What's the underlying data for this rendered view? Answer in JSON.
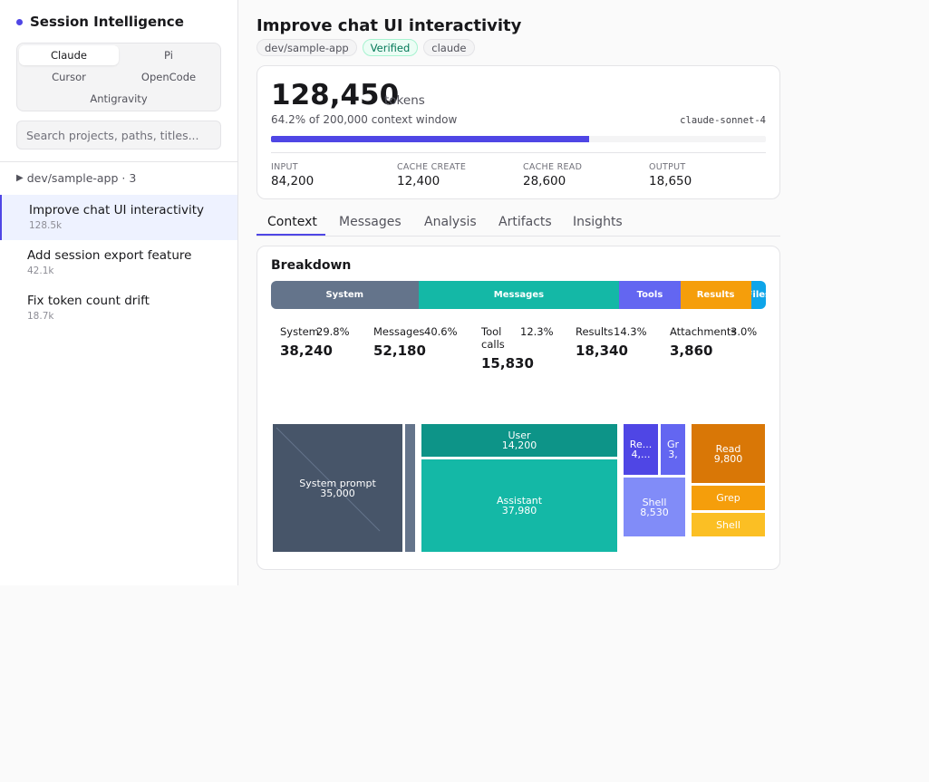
{
  "app": {
    "title": "Session Intelligence"
  },
  "agents": [
    "Claude",
    "Pi",
    "Cursor",
    "OpenCode",
    "Antigravity"
  ],
  "search": {
    "placeholder": "Search projects, paths, titles..."
  },
  "project_group": {
    "label": "dev/sample-app · 3"
  },
  "sessions": [
    {
      "title": "Improve chat UI interactivity",
      "tokens": "128.5k"
    },
    {
      "title": "Add session export feature",
      "tokens": "42.1k"
    },
    {
      "title": "Fix token count drift",
      "tokens": "18.7k"
    }
  ],
  "session": {
    "title": "Improve chat UI interactivity",
    "pills": [
      "dev/sample-app",
      "Verified",
      "claude"
    ]
  },
  "tokens": {
    "total": "128,450",
    "unit": "tokens",
    "context_text": "64.2% of 200,000 context window",
    "context_fraction": 0.642,
    "model": "claude-sonnet-4",
    "stats": [
      {
        "label": "INPUT",
        "value": "84,200"
      },
      {
        "label": "CACHE CREATE",
        "value": "12,400"
      },
      {
        "label": "CACHE READ",
        "value": "28,600"
      },
      {
        "label": "OUTPUT",
        "value": "18,650"
      }
    ]
  },
  "tabs": [
    "Context",
    "Messages",
    "Analysis",
    "Artifacts",
    "Insights"
  ],
  "breakdown": {
    "title": "Breakdown",
    "segments": [
      {
        "label": "System",
        "value": 38240,
        "color": "#64748b"
      },
      {
        "label": "Messages",
        "value": 52180,
        "color": "#14b8a6"
      },
      {
        "label": "Tools",
        "value": 15830,
        "color": "#6366f1"
      },
      {
        "label": "Results",
        "value": 18340,
        "color": "#f59e0b"
      },
      {
        "label": "Files",
        "value": 3860,
        "color": "#0ea5e9"
      }
    ],
    "categories": [
      {
        "name": "System",
        "pct": "29.8%",
        "value": "38,240",
        "bg": "#ebedf1"
      },
      {
        "name": "Messages",
        "pct": "40.6%",
        "value": "52,180",
        "bg": "#e3f6f2"
      },
      {
        "name": "Tool calls",
        "pct": "12.3%",
        "value": "15,830",
        "bg": "#ecebfd"
      },
      {
        "name": "Results",
        "pct": "14.3%",
        "value": "18,340",
        "bg": "#fdf1df"
      },
      {
        "name": "Attachments",
        "pct": "3.0%",
        "value": "3,860",
        "bg": "#e1f3fb"
      }
    ]
  },
  "treemap": {
    "system_prompt": {
      "label": "System prompt",
      "value": "35,000"
    },
    "user": {
      "label": "User",
      "value": "14,200"
    },
    "assistant": {
      "label": "Assistant",
      "value": "37,980"
    },
    "tool_read": {
      "label": "Re...",
      "value": "4,..."
    },
    "tool_grep": {
      "label": "Gr",
      "value": "3,"
    },
    "tool_shell": {
      "label": "Shell",
      "value": "8,530"
    },
    "result_read": {
      "label": "Read",
      "value": "9,800"
    },
    "result_grep": {
      "label": "Grep"
    },
    "result_shell": {
      "label": "Shell"
    }
  }
}
